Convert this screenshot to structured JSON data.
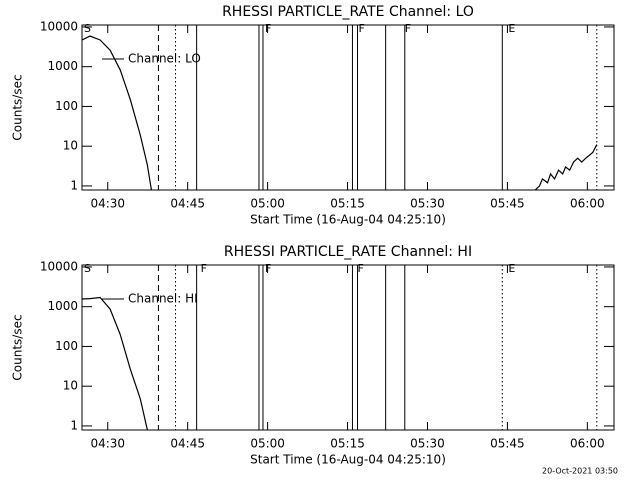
{
  "chart_data": [
    {
      "type": "line",
      "title": "RHESSI PARTICLE_RATE Channel: LO",
      "xlabel": "Start Time (16-Aug-04 04:25:10)",
      "ylabel": "Counts/sec",
      "xlim": [
        265.17,
        365
      ],
      "ylim": [
        0.79,
        11200
      ],
      "log_y": true,
      "xticks": [
        {
          "value": 270,
          "label": "04:30"
        },
        {
          "value": 285,
          "label": "04:45"
        },
        {
          "value": 300,
          "label": "05:00"
        },
        {
          "value": 315,
          "label": "05:15"
        },
        {
          "value": 330,
          "label": "05:30"
        },
        {
          "value": 345,
          "label": "05:45"
        },
        {
          "value": 360,
          "label": "06:00"
        }
      ],
      "yticks": [
        1,
        10,
        100,
        1000,
        10000
      ],
      "series": [
        {
          "name": "Channel: LO",
          "color": "#000000",
          "x": [
            265.17,
            266.68,
            268.57,
            270.45,
            272.34,
            274.23,
            276.11,
            277.43,
            278.19,
            null,
            350.26,
            351.02,
            351.58,
            352.53,
            353.09,
            353.85,
            354.6,
            355.36,
            355.92,
            356.68,
            357.43,
            358.19,
            358.94,
            359.7,
            360.45,
            361.02,
            361.77
          ],
          "values": [
            4700,
            5900,
            4700,
            2600,
            830,
            150,
            19,
            3.4,
            0.8,
            null,
            0.8,
            1,
            1.5,
            1.2,
            2,
            1.5,
            2.5,
            2,
            3,
            2.5,
            4,
            5,
            4,
            5,
            6,
            7,
            11
          ]
        }
      ],
      "events": [
        {
          "x": 279.51,
          "style": "dashed"
        },
        {
          "x": 282.72,
          "style": "dotted"
        },
        {
          "x": 286.68,
          "style": "solid"
        },
        {
          "x": 298.38,
          "style": "solid"
        },
        {
          "x": 299.13,
          "style": "solid"
        },
        {
          "x": 315.92,
          "style": "solid"
        },
        {
          "x": 316.87,
          "style": "solid"
        },
        {
          "x": 322.15,
          "style": "solid"
        },
        {
          "x": 325.74,
          "style": "solid"
        },
        {
          "x": 344.04,
          "style": "solid"
        },
        {
          "x": 361.77,
          "style": "dotted"
        }
      ],
      "flags": [
        {
          "label": "S",
          "x": 265.55
        },
        {
          "label": "F",
          "x": 299.5
        },
        {
          "label": "F",
          "x": 317.05
        },
        {
          "label": "F",
          "x": 325.74
        },
        {
          "label": "E",
          "x": 345.17
        }
      ]
    },
    {
      "type": "line",
      "title": "RHESSI PARTICLE_RATE Channel: HI",
      "xlabel": "Start Time (16-Aug-04 04:25:10)",
      "ylabel": "Counts/sec",
      "xlim": [
        265.17,
        365
      ],
      "ylim": [
        0.79,
        11200
      ],
      "log_y": true,
      "xticks": [
        {
          "value": 270,
          "label": "04:30"
        },
        {
          "value": 285,
          "label": "04:45"
        },
        {
          "value": 300,
          "label": "05:00"
        },
        {
          "value": 315,
          "label": "05:15"
        },
        {
          "value": 330,
          "label": "05:30"
        },
        {
          "value": 345,
          "label": "05:45"
        },
        {
          "value": 360,
          "label": "06:00"
        }
      ],
      "yticks": [
        1,
        10,
        100,
        1000,
        10000
      ],
      "series": [
        {
          "name": "Channel: HI",
          "color": "#000000",
          "x": [
            265.17,
            266.68,
            268.57,
            270.45,
            272.34,
            274.23,
            276.11,
            277.43
          ],
          "values": [
            1560,
            1600,
            1700,
            870,
            200,
            27,
            4.8,
            0.8
          ]
        }
      ],
      "events": [
        {
          "x": 279.51,
          "style": "dashed"
        },
        {
          "x": 282.72,
          "style": "dotted"
        },
        {
          "x": 286.68,
          "style": "solid"
        },
        {
          "x": 298.38,
          "style": "solid"
        },
        {
          "x": 299.13,
          "style": "solid"
        },
        {
          "x": 315.92,
          "style": "solid"
        },
        {
          "x": 316.87,
          "style": "solid"
        },
        {
          "x": 322.15,
          "style": "solid"
        },
        {
          "x": 325.74,
          "style": "solid"
        },
        {
          "x": 344.04,
          "style": "dotted"
        },
        {
          "x": 361.77,
          "style": "dotted"
        }
      ],
      "flags": [
        {
          "label": "S",
          "x": 265.55
        },
        {
          "label": "F",
          "x": 287.43
        },
        {
          "label": "F",
          "x": 299.5
        },
        {
          "label": "F",
          "x": 316.87
        },
        {
          "label": "E",
          "x": 345.17
        }
      ]
    }
  ],
  "footer": "20-Oct-2021 03:50"
}
